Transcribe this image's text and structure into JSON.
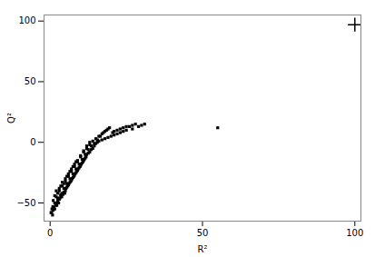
{
  "chart_data": {
    "type": "scatter",
    "xlabel": "R²",
    "ylabel": "Q²",
    "xlim": [
      -2,
      102
    ],
    "ylim": [
      -65,
      105
    ],
    "xticks": [
      0,
      50,
      100
    ],
    "yticks": [
      -50,
      0,
      50,
      100
    ],
    "grid": false,
    "series": [
      {
        "marker": "square",
        "color": "#000000",
        "x": [
          0.5,
          0.8,
          1.0,
          1.2,
          1.5,
          1.8,
          2.0,
          2.2,
          2.5,
          2.8,
          3.0,
          3.2,
          3.5,
          3.8,
          4.0,
          4.2,
          4.5,
          4.8,
          5.0,
          5.2,
          5.5,
          5.8,
          6.0,
          6.2,
          6.5,
          6.8,
          7.0,
          7.2,
          7.5,
          7.8,
          8.0,
          8.2,
          8.5,
          8.8,
          9.0,
          9.2,
          9.5,
          9.8,
          10.0,
          10.2,
          10.5,
          10.8,
          11.0,
          11.2,
          11.5,
          11.8,
          12.0,
          12.5,
          13.0,
          13.5,
          14.0,
          14.5,
          15.0,
          15.5,
          16.0,
          17.0,
          18.0,
          19.0,
          20.0,
          21.0,
          22.0,
          23.0,
          24.0,
          25.0,
          27.0,
          29.0,
          30.0,
          1.0,
          1.5,
          2.0,
          2.5,
          3.0,
          3.5,
          4.0,
          4.5,
          5.0,
          5.5,
          6.0,
          6.5,
          7.0,
          7.5,
          8.0,
          8.5,
          9.0,
          10.0,
          11.0,
          12.0,
          13.0,
          14.0,
          15.0,
          16.0,
          17.0,
          18.0,
          19.0,
          20.5,
          22.0,
          24.0,
          26.0,
          28.0,
          2.0,
          3.0,
          4.0,
          5.0,
          6.0,
          7.0,
          8.0,
          9.0,
          10.0,
          11.0,
          12.0,
          13.0,
          55.0,
          0.3,
          0.6,
          0.9,
          1.5,
          2.5,
          3.5,
          4.5,
          5.5,
          6.5,
          7.5,
          8.5,
          9.5,
          10.5,
          11.5,
          12.5,
          13.5,
          14.5,
          15.5,
          16.5,
          17.5,
          18.5,
          19.5,
          21.0,
          23.0,
          25.0,
          27.0,
          31.0
        ],
        "values": [
          -58,
          -60,
          -56,
          -54,
          -55,
          -52,
          -50,
          -52,
          -48,
          -50,
          -47,
          -46,
          -44,
          -45,
          -42,
          -43,
          -41,
          -42,
          -40,
          -38,
          -37,
          -36,
          -35,
          -34,
          -33,
          -32,
          -31,
          -30,
          -29,
          -28,
          -27,
          -26,
          -25,
          -24,
          -23,
          -22,
          -21,
          -20,
          -19,
          -18,
          -17,
          -16,
          -15,
          -14,
          -13,
          -12,
          -10,
          -9,
          -8,
          -6,
          -5,
          -3,
          -1,
          0,
          1,
          2,
          3,
          4,
          5,
          6,
          7,
          8,
          9,
          10,
          11,
          13,
          14,
          -48,
          -44,
          -40,
          -42,
          -38,
          -36,
          -33,
          -34,
          -30,
          -28,
          -26,
          -24,
          -22,
          -20,
          -18,
          -16,
          -15,
          -12,
          -8,
          -5,
          -2,
          1,
          3,
          5,
          7,
          9,
          11,
          8,
          10,
          12,
          13,
          15,
          -45,
          -40,
          -36,
          -32,
          -28,
          -24,
          -20,
          -16,
          -11,
          -7,
          -3,
          0,
          12,
          -58,
          -55,
          -53,
          -50,
          -46,
          -43,
          -38,
          -34,
          -30,
          -26,
          -22,
          -18,
          -14,
          -10,
          -6,
          -3,
          -1,
          2,
          5,
          8,
          10,
          12,
          9,
          11,
          13,
          14,
          15
        ]
      },
      {
        "marker": "plus",
        "color": "#000000",
        "x": [
          100
        ],
        "values": [
          97
        ]
      }
    ]
  }
}
